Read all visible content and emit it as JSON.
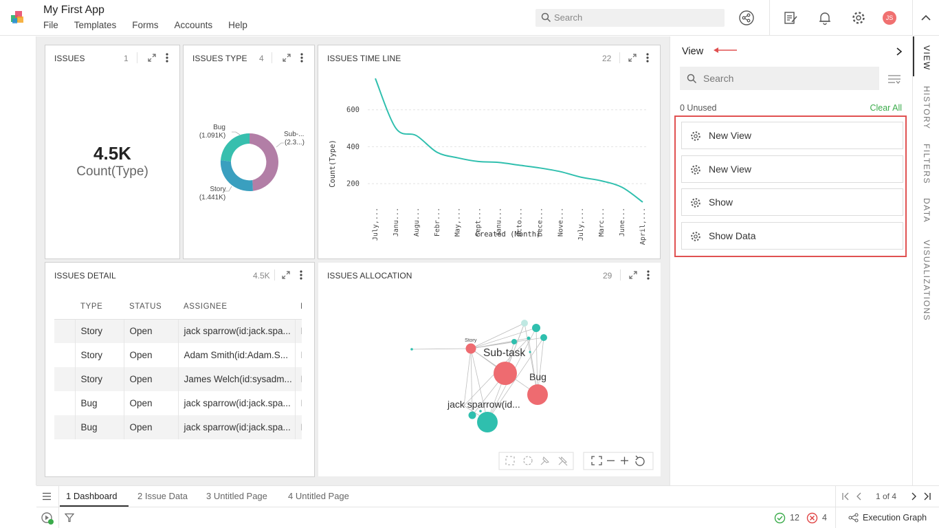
{
  "app": {
    "title": "My First App",
    "menu": [
      "File",
      "Templates",
      "Forms",
      "Accounts",
      "Help"
    ],
    "search_placeholder": "Search",
    "avatar_initials": "JS"
  },
  "panels": {
    "issues": {
      "title": "ISSUES",
      "count": "1",
      "value": "4.5K",
      "label": "Count(Type)"
    },
    "issues_type": {
      "title": "ISSUES TYPE",
      "count": "4",
      "slices": [
        {
          "name": "Bug",
          "value_label": "(1.091K)",
          "color": "#37bfae"
        },
        {
          "name": "Sub-...",
          "value_label": "(2.3...)",
          "color": "#b27ea6"
        },
        {
          "name": "Story",
          "value_label": "(1.441K)",
          "color": "#3a9fbf"
        }
      ]
    },
    "issues_timeline": {
      "title": "ISSUES TIME LINE",
      "count": "22"
    },
    "issues_detail": {
      "title": "ISSUES DETAIL",
      "count": "4.5K",
      "columns": [
        "TYPE",
        "STATUS",
        "ASSIGNEE",
        "I"
      ],
      "rows": [
        [
          "Story",
          "Open",
          "jack sparrow(id:jack.spa...",
          "I"
        ],
        [
          "Story",
          "Open",
          "Adam Smith(id:Adam.S...",
          "I"
        ],
        [
          "Story",
          "Open",
          "James Welch(id:sysadm...",
          "I"
        ],
        [
          "Bug",
          "Open",
          "jack sparrow(id:jack.spa...",
          "I"
        ],
        [
          "Bug",
          "Open",
          "jack sparrow(id:jack.spa...",
          "I"
        ]
      ]
    },
    "issues_allocation": {
      "title": "ISSUES ALLOCATION",
      "count": "29",
      "labels": {
        "story": "Story",
        "subtask": "Sub-task",
        "bug": "Bug",
        "assignee": "jack sparrow(id..."
      }
    }
  },
  "chart_data": {
    "type": "line",
    "title": "ISSUES TIME LINE",
    "xlabel": "Created (Month)",
    "ylabel": "Count(Type)",
    "categories": [
      "July,...",
      "Janu...",
      "Augu...",
      "Febr...",
      "May,...",
      "Sept...",
      "Janu...",
      "Octo...",
      "Dece...",
      "Nove...",
      "July,...",
      "Marc...",
      "June...",
      "April,..."
    ],
    "yticks": [
      200,
      400,
      600
    ],
    "ylim": [
      100,
      800
    ],
    "values": [
      770,
      500,
      460,
      370,
      340,
      320,
      315,
      300,
      285,
      265,
      235,
      215,
      180,
      100
    ],
    "color": "#2fbfae",
    "grid": true
  },
  "right_panel": {
    "title": "View",
    "search_placeholder": "Search",
    "unused_label": "0 Unused",
    "clear_all": "Clear All",
    "items": [
      "New View",
      "New View",
      "Show",
      "Show Data"
    ]
  },
  "side_tabs": [
    "VIEW",
    "HISTORY",
    "FILTERS",
    "DATA",
    "VISUALIZATIONS"
  ],
  "page_tabs": [
    "1 Dashboard",
    "2 Issue Data",
    "3 Untitled Page",
    "4 Untitled Page"
  ],
  "pagination": "1 of 4",
  "status": {
    "success_count": "12",
    "error_count": "4",
    "execution_graph": "Execution Graph"
  }
}
